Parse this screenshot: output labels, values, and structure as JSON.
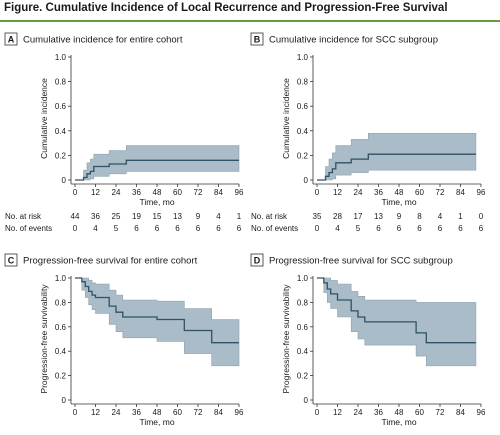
{
  "figure_title": "Figure. Cumulative Incidence of Local Recurrence and Progression-Free Survival",
  "colors": {
    "accent_rule": "#6a9a3f",
    "line": "#2e5266",
    "band": "#a9bcc7",
    "axis": "#333333"
  },
  "risk_table": {
    "row_labels": [
      "No. at risk",
      "No. of events"
    ]
  },
  "chart_data": [
    {
      "panel": "A",
      "type": "line",
      "title": "Cumulative incidence for entire cohort",
      "xlabel": "Time, mo",
      "ylabel": "Cumulative incidence",
      "xlim": [
        0,
        96
      ],
      "ylim": [
        0,
        1.0
      ],
      "xticks": [
        0,
        12,
        24,
        36,
        48,
        60,
        72,
        84,
        96
      ],
      "yticks": [
        0,
        0.2,
        0.4,
        0.6,
        0.8,
        1.0
      ],
      "ytick_labels": [
        "0",
        "0.2",
        "0.4",
        "0.6",
        "0.8",
        "1.0"
      ],
      "step": "up",
      "series": [
        {
          "x": [
            0,
            5,
            7,
            9,
            11,
            20,
            30,
            96
          ],
          "y": [
            0,
            0.02,
            0.05,
            0.07,
            0.11,
            0.13,
            0.16,
            0.16
          ]
        }
      ],
      "band": {
        "x": [
          0,
          5,
          7,
          9,
          11,
          20,
          30,
          96
        ],
        "lower": [
          0,
          0.0,
          0.0,
          0.01,
          0.03,
          0.05,
          0.07,
          0.07
        ],
        "upper": [
          0,
          0.08,
          0.14,
          0.17,
          0.21,
          0.24,
          0.28,
          0.28
        ]
      },
      "at_risk": [
        44,
        36,
        25,
        19,
        15,
        13,
        9,
        4,
        1
      ],
      "events": [
        0,
        4,
        5,
        6,
        6,
        6,
        6,
        6,
        6
      ]
    },
    {
      "panel": "B",
      "type": "line",
      "title": "Cumulative incidence for SCC subgroup",
      "xlabel": "Time, mo",
      "ylabel": "Cumulative incidence",
      "xlim": [
        0,
        96
      ],
      "ylim": [
        0,
        1.0
      ],
      "xticks": [
        0,
        12,
        24,
        36,
        48,
        60,
        72,
        84,
        96
      ],
      "yticks": [
        0,
        0.2,
        0.4,
        0.6,
        0.8,
        1.0
      ],
      "ytick_labels": [
        "0",
        "0.2",
        "0.4",
        "0.6",
        "0.8",
        "1.0"
      ],
      "step": "up",
      "series": [
        {
          "x": [
            0,
            5,
            7,
            9,
            11,
            20,
            30,
            93
          ],
          "y": [
            0,
            0.03,
            0.06,
            0.09,
            0.14,
            0.17,
            0.21,
            0.21
          ]
        }
      ],
      "band": {
        "x": [
          0,
          5,
          7,
          9,
          11,
          20,
          30,
          93
        ],
        "lower": [
          0,
          0.0,
          0.0,
          0.01,
          0.04,
          0.06,
          0.08,
          0.08
        ],
        "upper": [
          0,
          0.11,
          0.17,
          0.22,
          0.28,
          0.33,
          0.38,
          0.38
        ]
      },
      "at_risk": [
        35,
        28,
        17,
        13,
        9,
        8,
        4,
        1,
        0
      ],
      "events": [
        0,
        4,
        5,
        6,
        6,
        6,
        6,
        6,
        6
      ]
    },
    {
      "panel": "C",
      "type": "line",
      "title": "Progression-free survival for entire cohort",
      "xlabel": "Time, mo",
      "ylabel": "Progression-free survivability",
      "xlim": [
        0,
        96
      ],
      "ylim": [
        0,
        1.0
      ],
      "xticks": [
        0,
        12,
        24,
        36,
        48,
        60,
        72,
        84,
        96
      ],
      "yticks": [
        0,
        0.2,
        0.4,
        0.6,
        0.8,
        1.0
      ],
      "ytick_labels": [
        "0",
        "0.2",
        "0.4",
        "0.6",
        "0.8",
        "1.0"
      ],
      "step": "down",
      "series": [
        {
          "x": [
            0,
            4,
            6,
            8,
            10,
            12,
            20,
            24,
            28,
            48,
            64,
            80,
            96
          ],
          "y": [
            1.0,
            0.97,
            0.93,
            0.89,
            0.86,
            0.84,
            0.77,
            0.72,
            0.68,
            0.66,
            0.57,
            0.47,
            0.47
          ]
        }
      ],
      "band": {
        "x": [
          0,
          4,
          6,
          8,
          10,
          12,
          20,
          24,
          28,
          48,
          64,
          80,
          96
        ],
        "lower": [
          1.0,
          0.9,
          0.84,
          0.78,
          0.74,
          0.71,
          0.62,
          0.56,
          0.51,
          0.48,
          0.38,
          0.28,
          0.28
        ],
        "upper": [
          1.0,
          1.0,
          1.0,
          0.98,
          0.96,
          0.95,
          0.9,
          0.86,
          0.82,
          0.81,
          0.75,
          0.66,
          0.66
        ]
      }
    },
    {
      "panel": "D",
      "type": "line",
      "title": "Progression-free survival for SCC subgroup",
      "xlabel": "Time, mo",
      "ylabel": "Progression-free survivability",
      "xlim": [
        0,
        96
      ],
      "ylim": [
        0,
        1.0
      ],
      "xticks": [
        0,
        12,
        24,
        36,
        48,
        60,
        72,
        84,
        96
      ],
      "yticks": [
        0,
        0.2,
        0.4,
        0.6,
        0.8,
        1.0
      ],
      "ytick_labels": [
        "0",
        "0.2",
        "0.4",
        "0.6",
        "0.8",
        "1.0"
      ],
      "step": "down",
      "series": [
        {
          "x": [
            0,
            4,
            6,
            8,
            12,
            20,
            24,
            28,
            58,
            64,
            93
          ],
          "y": [
            1.0,
            0.96,
            0.91,
            0.87,
            0.82,
            0.73,
            0.68,
            0.64,
            0.55,
            0.47,
            0.47
          ]
        }
      ],
      "band": {
        "x": [
          0,
          4,
          6,
          8,
          12,
          20,
          24,
          28,
          58,
          64,
          93
        ],
        "lower": [
          1.0,
          0.88,
          0.8,
          0.75,
          0.68,
          0.56,
          0.5,
          0.45,
          0.36,
          0.28,
          0.28
        ],
        "upper": [
          1.0,
          1.0,
          1.0,
          0.98,
          0.95,
          0.89,
          0.85,
          0.82,
          0.8,
          0.8,
          0.8
        ]
      }
    }
  ]
}
